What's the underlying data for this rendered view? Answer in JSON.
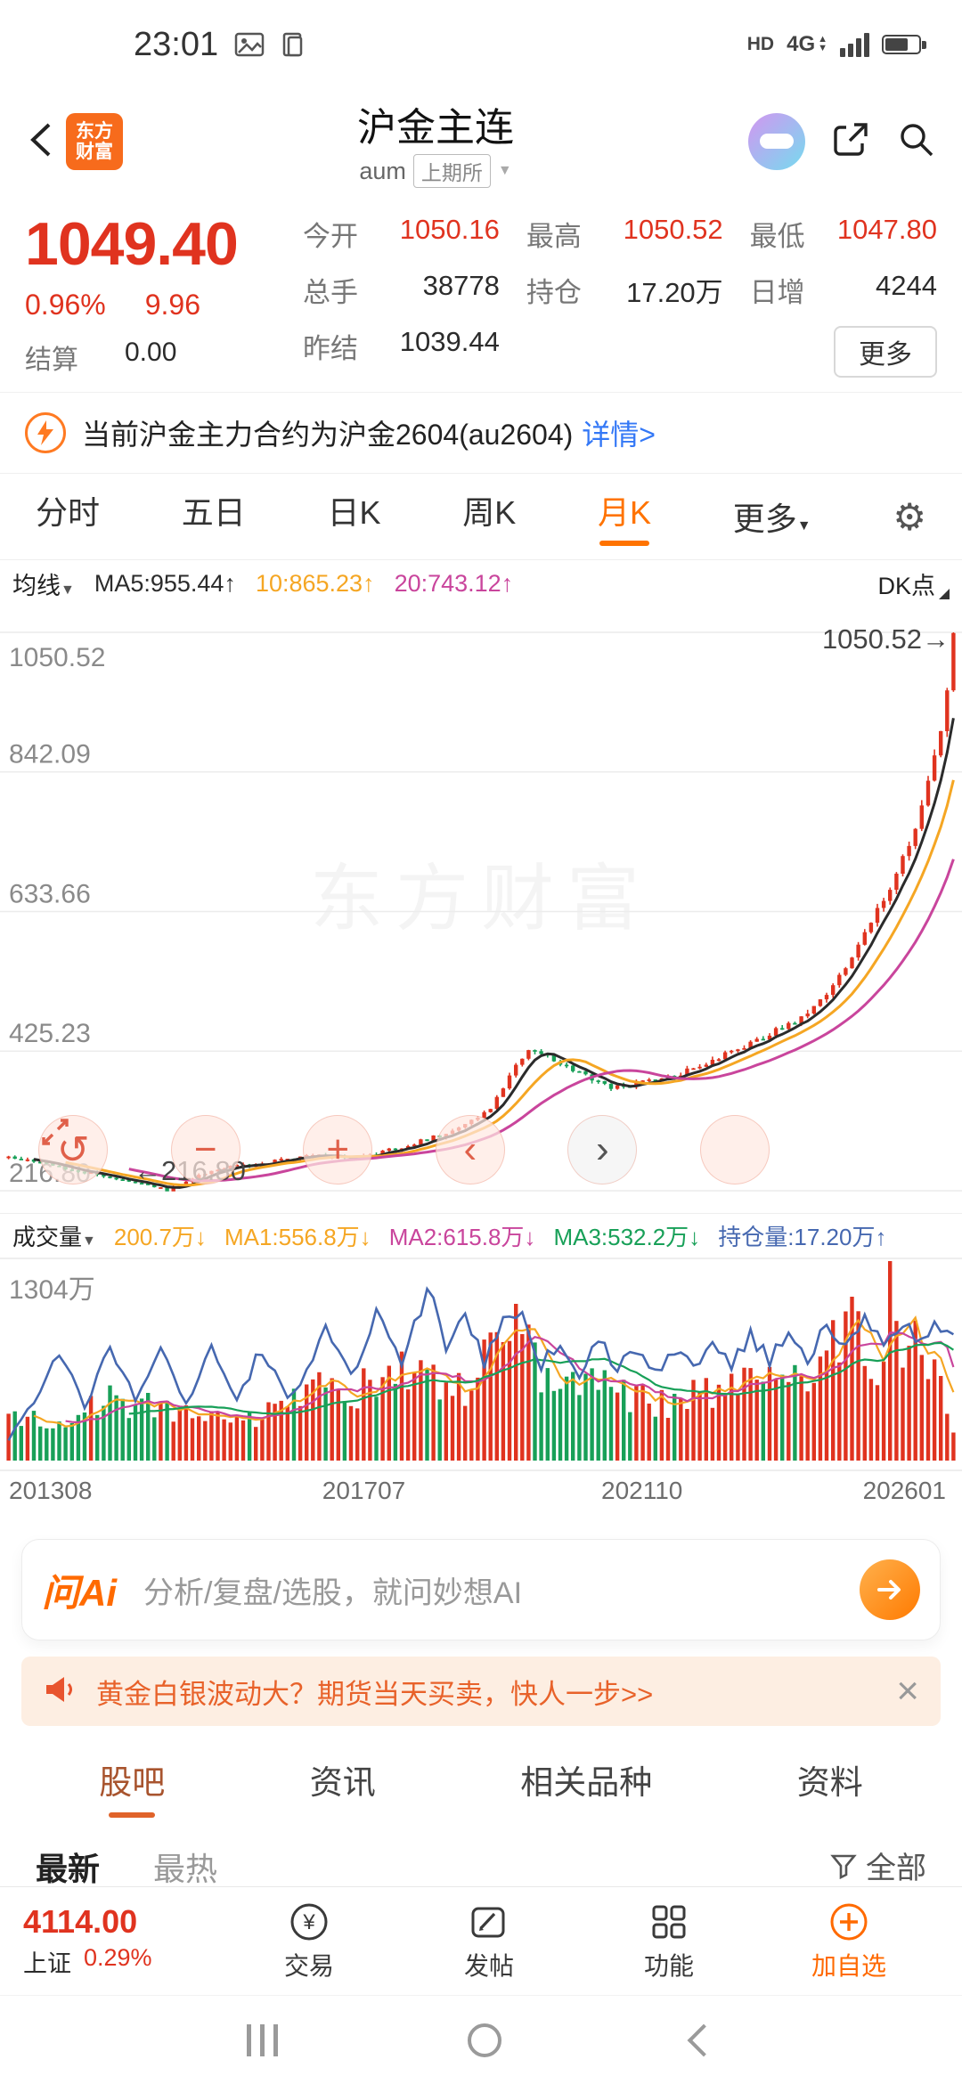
{
  "colors": {
    "up": "#e0331f",
    "down": "#18a058",
    "accent": "#ff6a00",
    "link": "#3478f6",
    "ma5": "#2b2b2b",
    "ma10": "#f5a623",
    "ma20": "#c9459c",
    "oi_line": "#4668b0"
  },
  "icons": {
    "gear": "⚙",
    "close": "×",
    "dropdown": "▼",
    "undo": "↺",
    "minus": "−",
    "plus": "+",
    "prev": "‹",
    "next": "›"
  },
  "status_bar": {
    "time": "23:01",
    "hd": "HD",
    "network": "4G"
  },
  "header": {
    "logo_line1": "东方",
    "logo_line2": "财富",
    "title": "沪金主连",
    "code": "aum",
    "exchange_tag": "上期所"
  },
  "quote": {
    "price": "1049.40",
    "change_pct": "0.96%",
    "change_amt": "9.96",
    "settle_label": "结算",
    "settle_value": "0.00",
    "grid": [
      {
        "label": "今开",
        "value": "1050.16",
        "cls": "red"
      },
      {
        "label": "最高",
        "value": "1050.52",
        "cls": "red"
      },
      {
        "label": "最低",
        "value": "1047.80",
        "cls": "red"
      },
      {
        "label": "总手",
        "value": "38778",
        "cls": "dark"
      },
      {
        "label": "持仓",
        "value": "17.20万",
        "cls": "dark"
      },
      {
        "label": "日增",
        "value": "4244",
        "cls": "dark"
      },
      {
        "label": "昨结",
        "value": "1039.44",
        "cls": "dark"
      }
    ],
    "more_label": "更多"
  },
  "notice": {
    "text": "当前沪金主力合约为沪金2604(au2604)",
    "link_label": "详情>"
  },
  "period_tabs": {
    "tabs": [
      "分时",
      "五日",
      "日K",
      "周K",
      "月K"
    ],
    "active_index": 4,
    "more_label": "更多"
  },
  "ma_legend": {
    "avg_label": "均线",
    "ma5": "MA5:955.44↑",
    "ma10": "10:865.23↑",
    "ma20": "20:743.12↑",
    "dk_label": "DK点"
  },
  "chart_data": {
    "type": "candlestick",
    "title": "沪金主连 月K",
    "y_ticks": [
      1050.52,
      842.09,
      633.66,
      425.23,
      216.8
    ],
    "y_range": [
      216.8,
      1050.52
    ],
    "x_labels": [
      "201308",
      "201707",
      "202110",
      "202601"
    ],
    "n": 150,
    "last_close": 1049.4,
    "max_high": 1050.52,
    "min_low": 216.8,
    "min_low_index": 25,
    "annotation_top": "1050.52→",
    "annotation_bottom": "←216.80",
    "watermark": "东方财富",
    "price_anchors": [
      [
        0,
        268
      ],
      [
        8,
        252
      ],
      [
        16,
        236
      ],
      [
        25,
        218
      ],
      [
        32,
        248
      ],
      [
        40,
        258
      ],
      [
        47,
        270
      ],
      [
        55,
        266
      ],
      [
        62,
        282
      ],
      [
        70,
        305
      ],
      [
        76,
        340
      ],
      [
        80,
        405
      ],
      [
        82,
        430
      ],
      [
        86,
        412
      ],
      [
        90,
        392
      ],
      [
        95,
        370
      ],
      [
        100,
        378
      ],
      [
        106,
        392
      ],
      [
        112,
        415
      ],
      [
        118,
        442
      ],
      [
        124,
        470
      ],
      [
        128,
        500
      ],
      [
        132,
        552
      ],
      [
        136,
        618
      ],
      [
        140,
        688
      ],
      [
        143,
        758
      ],
      [
        145,
        828
      ],
      [
        147,
        902
      ],
      [
        148,
        962
      ],
      [
        149,
        1049.4
      ]
    ],
    "volume": {
      "current_label": "200.7万↓",
      "max_label": "1304万",
      "scale_max": 1350,
      "anchors": [
        [
          0,
          320
        ],
        [
          8,
          260
        ],
        [
          16,
          430
        ],
        [
          25,
          360
        ],
        [
          33,
          300
        ],
        [
          40,
          330
        ],
        [
          47,
          520
        ],
        [
          53,
          470
        ],
        [
          58,
          560
        ],
        [
          63,
          640
        ],
        [
          68,
          560
        ],
        [
          72,
          520
        ],
        [
          76,
          760
        ],
        [
          80,
          900
        ],
        [
          84,
          640
        ],
        [
          88,
          520
        ],
        [
          92,
          580
        ],
        [
          96,
          470
        ],
        [
          100,
          430
        ],
        [
          104,
          400
        ],
        [
          108,
          470
        ],
        [
          112,
          520
        ],
        [
          116,
          560
        ],
        [
          120,
          600
        ],
        [
          124,
          640
        ],
        [
          128,
          700
        ],
        [
          131,
          900
        ],
        [
          133,
          1320
        ],
        [
          135,
          640
        ],
        [
          137,
          520
        ],
        [
          139,
          1330
        ],
        [
          141,
          760
        ],
        [
          143,
          860
        ],
        [
          145,
          700
        ],
        [
          147,
          560
        ],
        [
          148,
          380
        ],
        [
          149,
          200.7
        ]
      ]
    },
    "open_interest": {
      "scale_max": 1650,
      "anchors": [
        [
          0,
          180
        ],
        [
          4,
          520
        ],
        [
          8,
          980
        ],
        [
          12,
          450
        ],
        [
          16,
          1020
        ],
        [
          20,
          520
        ],
        [
          24,
          960
        ],
        [
          28,
          470
        ],
        [
          32,
          1060
        ],
        [
          36,
          540
        ],
        [
          40,
          990
        ],
        [
          44,
          580
        ],
        [
          47,
          760
        ],
        [
          50,
          1120
        ],
        [
          54,
          720
        ],
        [
          58,
          1280
        ],
        [
          62,
          820
        ],
        [
          66,
          1560
        ],
        [
          69,
          940
        ],
        [
          72,
          1300
        ],
        [
          75,
          880
        ],
        [
          78,
          1240
        ],
        [
          81,
          1340
        ],
        [
          84,
          840
        ],
        [
          87,
          1060
        ],
        [
          90,
          760
        ],
        [
          93,
          1080
        ],
        [
          96,
          800
        ],
        [
          99,
          1020
        ],
        [
          102,
          780
        ],
        [
          105,
          980
        ],
        [
          108,
          820
        ],
        [
          111,
          1060
        ],
        [
          114,
          860
        ],
        [
          117,
          1100
        ],
        [
          120,
          880
        ],
        [
          123,
          1140
        ],
        [
          126,
          920
        ],
        [
          129,
          1180
        ],
        [
          132,
          960
        ],
        [
          135,
          1220
        ],
        [
          138,
          1020
        ],
        [
          141,
          1260
        ],
        [
          144,
          1060
        ],
        [
          146,
          1280
        ],
        [
          148,
          1100
        ],
        [
          149,
          1150
        ]
      ]
    }
  },
  "volume_legend": {
    "vol_label": "成交量",
    "vol": "200.7万↓",
    "ma1": "MA1:556.8万↓",
    "ma2": "MA2:615.8万↓",
    "ma3": "MA3:532.2万↓",
    "oi": "持仓量:17.20万↑"
  },
  "ai_bar": {
    "logo": "问Ai",
    "text": "分析/复盘/选股，就问妙想AI"
  },
  "promo": {
    "text": "黄金白银波动大？期货当天买卖，快人一步>>"
  },
  "content_tabs": {
    "tabs": [
      "股吧",
      "资讯",
      "相关品种",
      "资料"
    ],
    "active_index": 0
  },
  "feed_filter": {
    "newest": "最新",
    "hottest": "最热",
    "all": "全部"
  },
  "bottom_bar": {
    "index_value": "4114.00",
    "index_name": "上证",
    "index_change": "0.29%",
    "items": [
      "交易",
      "发帖",
      "功能",
      "加自选"
    ]
  }
}
